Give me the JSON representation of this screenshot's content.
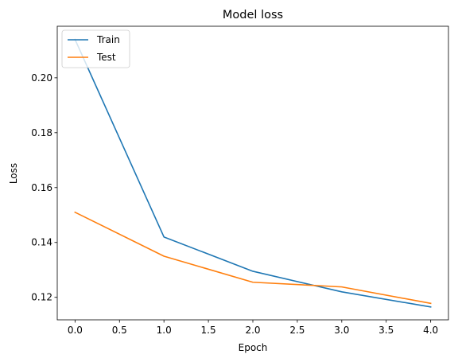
{
  "chart_data": {
    "type": "line",
    "title": "Model loss",
    "xlabel": "Epoch",
    "ylabel": "Loss",
    "x": [
      0,
      1,
      2,
      3,
      4
    ],
    "series": [
      {
        "name": "Train",
        "color": "#1f77b4",
        "values": [
          0.214,
          0.142,
          0.1295,
          0.122,
          0.1165
        ]
      },
      {
        "name": "Test",
        "color": "#ff7f0e",
        "values": [
          0.151,
          0.135,
          0.1255,
          0.1238,
          0.1178
        ]
      }
    ],
    "xlim": [
      -0.2,
      4.2
    ],
    "ylim": [
      0.1118,
      0.2188
    ],
    "xticks": [
      "0.0",
      "0.5",
      "1.0",
      "1.5",
      "2.0",
      "2.5",
      "3.0",
      "3.5",
      "4.0"
    ],
    "yticks": [
      "0.12",
      "0.14",
      "0.16",
      "0.18",
      "0.20"
    ],
    "grid": false,
    "legend_position": "upper left"
  }
}
